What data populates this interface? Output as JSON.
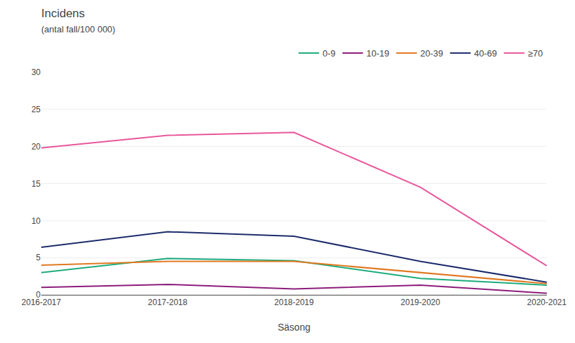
{
  "chart_data": {
    "type": "line",
    "title": "Incidens",
    "subtitle": "(antal fall/100 000)",
    "xlabel": "Säsong",
    "categories": [
      "2016-2017",
      "2017-2018",
      "2018-2019",
      "2019-2020",
      "2020-2021"
    ],
    "series": [
      {
        "name": "0-9",
        "color": "#1aaa7a",
        "values": [
          3.0,
          4.9,
          4.6,
          2.2,
          1.3
        ]
      },
      {
        "name": "10-19",
        "color": "#8b1a7a",
        "values": [
          1.0,
          1.4,
          0.8,
          1.3,
          0.2
        ]
      },
      {
        "name": "20-39",
        "color": "#e07820",
        "values": [
          4.0,
          4.5,
          4.5,
          3.0,
          1.5
        ]
      },
      {
        "name": "40-69",
        "color": "#1a2a6b",
        "values": [
          6.4,
          8.5,
          7.9,
          4.5,
          1.7
        ]
      },
      {
        "name": "≥70",
        "color": "#e8559a",
        "values": [
          19.8,
          21.5,
          21.9,
          14.5,
          3.9
        ]
      }
    ],
    "ylim": [
      0,
      30
    ],
    "yticks": [
      0,
      5,
      10,
      15,
      20,
      25,
      30
    ],
    "grid": true,
    "legend": "top"
  }
}
